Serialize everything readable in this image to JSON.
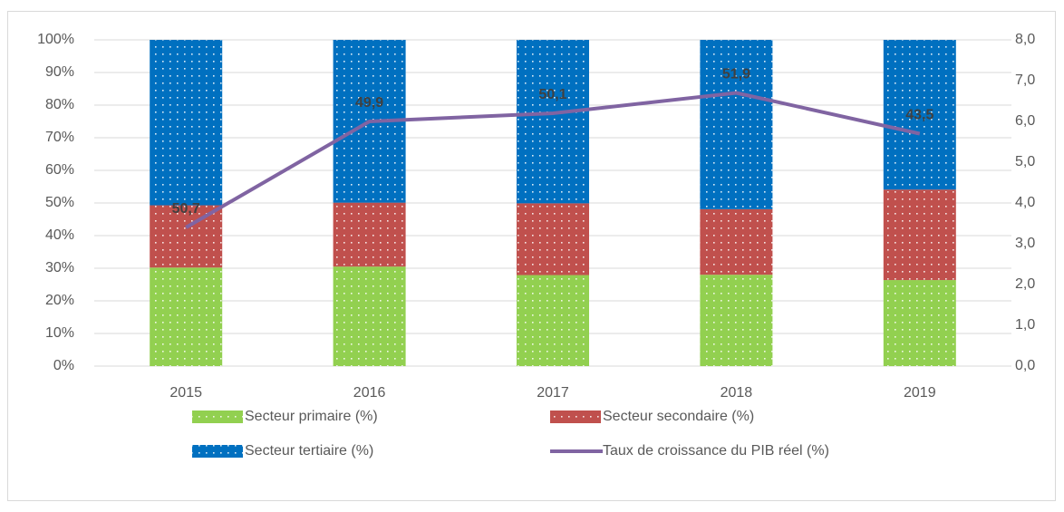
{
  "chart_data": {
    "type": "stacked_percent_bar_line",
    "categories": [
      "2015",
      "2016",
      "2017",
      "2018",
      "2019"
    ],
    "series": [
      {
        "name": "Secteur primaire (%)",
        "color": "#92d050",
        "values": [
          30.2,
          30.5,
          27.9,
          28.0,
          25.0
        ]
      },
      {
        "name": "Secteur secondaire (%)",
        "color": "#c0504d",
        "values": [
          19.1,
          19.6,
          22.0,
          20.1,
          26.3
        ]
      },
      {
        "name": "Secteur tertiaire (%)",
        "color": "#0070c0",
        "values": [
          50.7,
          49.9,
          50.1,
          51.9,
          43.5
        ],
        "value_labels": [
          "50,7",
          "49,9",
          "50,1",
          "51,9",
          "43,5"
        ]
      },
      {
        "name": "Taux de croissance du PIB réel (%)",
        "color": "#8064a2",
        "type": "line",
        "axis": "y2",
        "values": [
          3.4,
          6.0,
          6.2,
          6.7,
          5.7
        ]
      }
    ],
    "ylim": [
      0,
      100
    ],
    "yticks": [
      {
        "value": 0,
        "label": "0%"
      },
      {
        "value": 10,
        "label": "10%"
      },
      {
        "value": 20,
        "label": "20%"
      },
      {
        "value": 30,
        "label": "30%"
      },
      {
        "value": 40,
        "label": "40%"
      },
      {
        "value": 50,
        "label": "50%"
      },
      {
        "value": 60,
        "label": "60%"
      },
      {
        "value": 70,
        "label": "70%"
      },
      {
        "value": 80,
        "label": "80%"
      },
      {
        "value": 90,
        "label": "90%"
      },
      {
        "value": 100,
        "label": "100%"
      }
    ],
    "y2lim": [
      0,
      8
    ],
    "y2ticks": [
      {
        "value": 0,
        "label": "0,0"
      },
      {
        "value": 1,
        "label": "1,0"
      },
      {
        "value": 2,
        "label": "2,0"
      },
      {
        "value": 3,
        "label": "3,0"
      },
      {
        "value": 4,
        "label": "4,0"
      },
      {
        "value": 5,
        "label": "5,0"
      },
      {
        "value": 6,
        "label": "6,0"
      },
      {
        "value": 7,
        "label": "7,0"
      },
      {
        "value": 8,
        "label": "8,0"
      }
    ],
    "grid": true,
    "legend": "bottom"
  }
}
